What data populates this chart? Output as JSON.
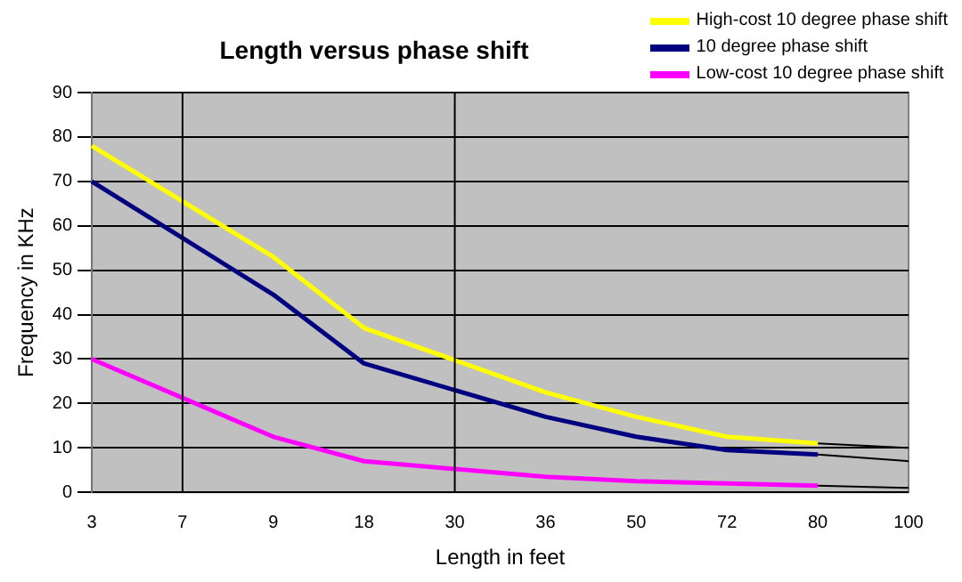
{
  "chart_data": {
    "type": "line",
    "title": "Length versus phase shift",
    "xlabel": "Length in feet",
    "ylabel": "Frequency in KHz",
    "categories": [
      "3",
      "7",
      "9",
      "18",
      "30",
      "36",
      "50",
      "72",
      "80",
      "100"
    ],
    "series": [
      {
        "name": "High-cost 10 degree phase shift",
        "color": "#ffff00",
        "values": [
          78,
          null,
          53,
          37,
          null,
          22.5,
          17,
          12.5,
          11,
          null
        ]
      },
      {
        "name": "10 degree phase shift",
        "color": "#000080",
        "values": [
          70,
          null,
          44.5,
          29,
          null,
          17,
          12.5,
          9.5,
          8.5,
          null
        ]
      },
      {
        "name": "Low-cost 10 degree phase shift",
        "color": "#ff00ff",
        "values": [
          30,
          null,
          12.5,
          7,
          null,
          3.5,
          2.5,
          2,
          1.5,
          null
        ]
      },
      {
        "type": "line",
        "color": "#000000",
        "values": [
          null,
          null,
          null,
          null,
          null,
          null,
          null,
          null,
          11,
          10
        ]
      },
      {
        "type": "line",
        "color": "#000000",
        "values": [
          null,
          null,
          null,
          null,
          null,
          null,
          null,
          null,
          8.5,
          7
        ]
      },
      {
        "type": "line",
        "color": "#000000",
        "values": [
          null,
          null,
          null,
          null,
          null,
          null,
          null,
          null,
          1.5,
          1
        ]
      }
    ],
    "ref_lines": [
      {
        "axis": "x",
        "value": "7",
        "color": "#000000"
      },
      {
        "axis": "x",
        "value": "30",
        "color": "#000000"
      }
    ],
    "ylim": [
      0,
      90
    ],
    "yticks": [
      0,
      10,
      20,
      30,
      40,
      50,
      60,
      70,
      80,
      90
    ],
    "grid": "y",
    "legend": "top right",
    "marker": "none",
    "line_style": "solid"
  }
}
